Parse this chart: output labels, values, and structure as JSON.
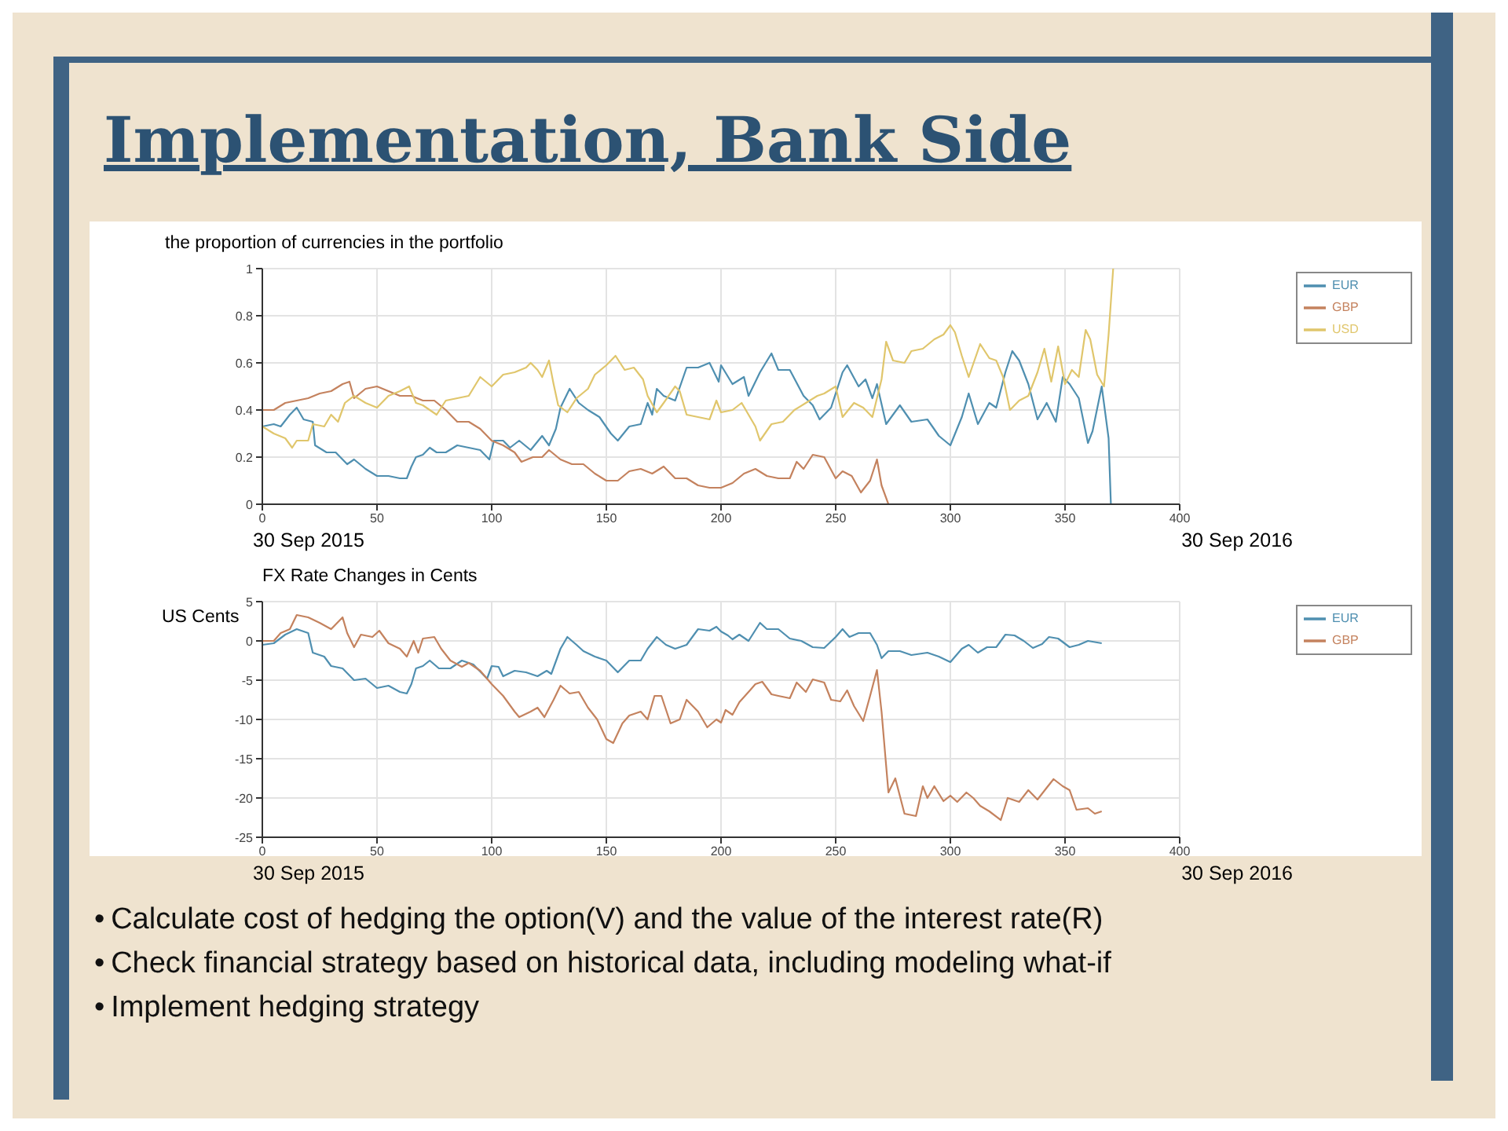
{
  "chart_data": [
    {
      "type": "line",
      "title": "the proportion of currencies in the portfolio",
      "xlim": [
        0,
        400
      ],
      "xticks": [
        0,
        50,
        100,
        150,
        200,
        250,
        300,
        350,
        400
      ],
      "ylim": [
        0,
        1
      ],
      "yticks": [
        0,
        0.2,
        0.4,
        0.6,
        0.8,
        1
      ],
      "grid": true,
      "legend": "top right",
      "annotations": [
        "Implementation, Bank Side",
        "30 Sep 2015",
        "30 Sep 2016"
      ],
      "series": [
        {
          "name": "EUR",
          "color": "#4f8fb0",
          "x": [
            0,
            5,
            8,
            12,
            15,
            18,
            22,
            23,
            28,
            32,
            37,
            40,
            45,
            50,
            55,
            60,
            63,
            65,
            67,
            70,
            73,
            76,
            80,
            85,
            90,
            95,
            99,
            101,
            105,
            108,
            112,
            117,
            122,
            125,
            128,
            130,
            134,
            138,
            142,
            147,
            152,
            155,
            160,
            165,
            168,
            170,
            172,
            175,
            180,
            185,
            190,
            195,
            199,
            200,
            205,
            210,
            212,
            217,
            222,
            225,
            230,
            236,
            240,
            243,
            248,
            253,
            255,
            260,
            263,
            266,
            268,
            272,
            278,
            283,
            290,
            295,
            300,
            305,
            308,
            312,
            317,
            320,
            324,
            327,
            330,
            334,
            338,
            342,
            346,
            349,
            352,
            356,
            360,
            362,
            366,
            369,
            370
          ],
          "values": [
            0.33,
            0.34,
            0.33,
            0.38,
            0.41,
            0.36,
            0.35,
            0.25,
            0.22,
            0.22,
            0.17,
            0.19,
            0.15,
            0.12,
            0.12,
            0.11,
            0.11,
            0.16,
            0.2,
            0.21,
            0.24,
            0.22,
            0.22,
            0.25,
            0.24,
            0.23,
            0.19,
            0.27,
            0.27,
            0.24,
            0.27,
            0.23,
            0.29,
            0.25,
            0.32,
            0.41,
            0.49,
            0.43,
            0.4,
            0.37,
            0.3,
            0.27,
            0.33,
            0.34,
            0.43,
            0.38,
            0.49,
            0.46,
            0.44,
            0.58,
            0.58,
            0.6,
            0.52,
            0.59,
            0.51,
            0.54,
            0.46,
            0.56,
            0.64,
            0.57,
            0.57,
            0.46,
            0.42,
            0.36,
            0.41,
            0.56,
            0.59,
            0.5,
            0.53,
            0.45,
            0.51,
            0.34,
            0.42,
            0.35,
            0.36,
            0.29,
            0.25,
            0.37,
            0.47,
            0.34,
            0.43,
            0.41,
            0.56,
            0.65,
            0.61,
            0.51,
            0.36,
            0.43,
            0.35,
            0.54,
            0.51,
            0.45,
            0.26,
            0.31,
            0.5,
            0.28,
            0
          ]
        },
        {
          "name": "GBP",
          "color": "#c4825e",
          "x": [
            0,
            5,
            10,
            15,
            20,
            25,
            30,
            35,
            38,
            40,
            45,
            50,
            55,
            60,
            65,
            70,
            75,
            80,
            85,
            90,
            95,
            100,
            105,
            110,
            113,
            118,
            122,
            125,
            130,
            135,
            140,
            145,
            150,
            155,
            160,
            165,
            170,
            175,
            180,
            185,
            190,
            195,
            200,
            205,
            210,
            215,
            220,
            225,
            230,
            233,
            236,
            240,
            245,
            250,
            253,
            257,
            261,
            265,
            268,
            270,
            273,
            367
          ],
          "values": [
            0.4,
            0.4,
            0.43,
            0.44,
            0.45,
            0.47,
            0.48,
            0.51,
            0.52,
            0.45,
            0.49,
            0.5,
            0.48,
            0.46,
            0.46,
            0.44,
            0.44,
            0.4,
            0.35,
            0.35,
            0.32,
            0.27,
            0.25,
            0.22,
            0.18,
            0.2,
            0.2,
            0.23,
            0.19,
            0.17,
            0.17,
            0.13,
            0.1,
            0.1,
            0.14,
            0.15,
            0.13,
            0.16,
            0.11,
            0.11,
            0.08,
            0.07,
            0.07,
            0.09,
            0.13,
            0.15,
            0.12,
            0.11,
            0.11,
            0.18,
            0.15,
            0.21,
            0.2,
            0.11,
            0.14,
            0.12,
            0.05,
            0.1,
            0.19,
            0.08,
            0,
            0
          ]
        },
        {
          "name": "USD",
          "color": "#e0c66c",
          "x": [
            0,
            5,
            10,
            13,
            15,
            20,
            22,
            27,
            30,
            33,
            36,
            40,
            45,
            50,
            55,
            60,
            64,
            67,
            70,
            73,
            76,
            80,
            85,
            90,
            95,
            100,
            105,
            110,
            115,
            117,
            120,
            122,
            125,
            127,
            129,
            133,
            137,
            142,
            145,
            150,
            154,
            158,
            162,
            166,
            168,
            172,
            175,
            180,
            182,
            185,
            190,
            195,
            198,
            200,
            205,
            209,
            215,
            217,
            222,
            227,
            232,
            237,
            242,
            245,
            250,
            253,
            258,
            262,
            266,
            270,
            272,
            275,
            280,
            283,
            288,
            293,
            297,
            300,
            302,
            305,
            308,
            313,
            317,
            320,
            323,
            326,
            330,
            334,
            338,
            341,
            344,
            347,
            350,
            353,
            356,
            359,
            361,
            364,
            367,
            369,
            371
          ],
          "values": [
            0.33,
            0.3,
            0.28,
            0.24,
            0.27,
            0.27,
            0.34,
            0.33,
            0.38,
            0.35,
            0.43,
            0.46,
            0.43,
            0.41,
            0.46,
            0.48,
            0.5,
            0.43,
            0.42,
            0.4,
            0.38,
            0.44,
            0.45,
            0.46,
            0.54,
            0.5,
            0.55,
            0.56,
            0.58,
            0.6,
            0.57,
            0.54,
            0.61,
            0.51,
            0.42,
            0.39,
            0.45,
            0.49,
            0.55,
            0.59,
            0.63,
            0.57,
            0.58,
            0.53,
            0.46,
            0.39,
            0.43,
            0.5,
            0.48,
            0.38,
            0.37,
            0.36,
            0.44,
            0.39,
            0.4,
            0.43,
            0.33,
            0.27,
            0.34,
            0.35,
            0.4,
            0.43,
            0.46,
            0.47,
            0.5,
            0.37,
            0.43,
            0.41,
            0.37,
            0.53,
            0.69,
            0.61,
            0.6,
            0.65,
            0.66,
            0.7,
            0.72,
            0.76,
            0.73,
            0.63,
            0.54,
            0.68,
            0.62,
            0.61,
            0.54,
            0.4,
            0.44,
            0.46,
            0.56,
            0.66,
            0.52,
            0.67,
            0.51,
            0.57,
            0.54,
            0.74,
            0.7,
            0.55,
            0.5,
            0.72,
            1
          ]
        }
      ]
    },
    {
      "type": "line",
      "title": "FX Rate Changes in Cents",
      "ylabel": "US Cents",
      "xlim": [
        0,
        400
      ],
      "xticks": [
        0,
        50,
        100,
        150,
        200,
        250,
        300,
        350,
        400
      ],
      "ylim": [
        -25,
        5
      ],
      "yticks": [
        -25,
        -20,
        -15,
        -10,
        -5,
        0,
        5
      ],
      "grid": true,
      "legend": "top right",
      "annotations": [
        "30 Sep 2015",
        "30 Sep 2016",
        "•\tCalculate cost of hedging the option(V) and the value of the interest rate(R)",
        "•\tCheck financial strategy based on historical data, including modeling what-if",
        "•\tImplement hedging strategy"
      ],
      "series": [
        {
          "name": "EUR",
          "color": "#4f8fb0",
          "x": [
            0,
            5,
            10,
            15,
            20,
            22,
            27,
            30,
            35,
            40,
            45,
            50,
            55,
            60,
            63,
            65,
            67,
            70,
            73,
            77,
            82,
            87,
            92,
            98,
            100,
            103,
            105,
            110,
            115,
            120,
            124,
            126,
            130,
            133,
            137,
            140,
            145,
            150,
            155,
            160,
            165,
            168,
            172,
            176,
            180,
            185,
            190,
            195,
            198,
            200,
            203,
            205,
            208,
            212,
            217,
            220,
            225,
            230,
            235,
            240,
            245,
            250,
            253,
            256,
            260,
            265,
            268,
            270,
            273,
            278,
            283,
            290,
            295,
            300,
            305,
            308,
            312,
            316,
            320,
            324,
            328,
            332,
            336,
            340,
            343,
            347,
            352,
            356,
            360,
            366
          ],
          "values": [
            -0.5,
            -0.3,
            0.8,
            1.5,
            1,
            -1.5,
            -2,
            -3.2,
            -3.5,
            -5,
            -4.8,
            -6,
            -5.7,
            -6.5,
            -6.7,
            -5.5,
            -3.5,
            -3.2,
            -2.5,
            -3.5,
            -3.5,
            -2.5,
            -3,
            -4.8,
            -3.2,
            -3.3,
            -4.5,
            -3.8,
            -4,
            -4.5,
            -3.8,
            -4.2,
            -1,
            0.5,
            -0.5,
            -1.3,
            -2,
            -2.5,
            -4,
            -2.5,
            -2.5,
            -1,
            0.5,
            -0.5,
            -1,
            -0.5,
            1.5,
            1.3,
            1.8,
            1.2,
            0.7,
            0.2,
            0.8,
            0,
            2.3,
            1.5,
            1.5,
            0.3,
            0,
            -0.8,
            -0.9,
            0.5,
            1.5,
            0.5,
            1,
            1,
            -0.5,
            -2.2,
            -1.3,
            -1.3,
            -1.8,
            -1.5,
            -2,
            -2.7,
            -1,
            -0.5,
            -1.5,
            -0.8,
            -0.8,
            0.8,
            0.7,
            0,
            -0.9,
            -0.4,
            0.5,
            0.3,
            -0.8,
            -0.5,
            0,
            -0.3
          ]
        },
        {
          "name": "GBP",
          "color": "#c4825e",
          "x": [
            0,
            5,
            8,
            12,
            15,
            20,
            25,
            30,
            35,
            37,
            40,
            43,
            48,
            51,
            55,
            60,
            63,
            66,
            68,
            70,
            75,
            78,
            82,
            87,
            90,
            95,
            100,
            105,
            110,
            112,
            117,
            120,
            123,
            127,
            130,
            134,
            138,
            142,
            146,
            150,
            153,
            157,
            160,
            165,
            168,
            171,
            174,
            178,
            182,
            185,
            190,
            194,
            198,
            200,
            202,
            205,
            208,
            212,
            215,
            218,
            222,
            225,
            230,
            233,
            237,
            240,
            245,
            248,
            252,
            255,
            258,
            262,
            265,
            268,
            270,
            273,
            276,
            280,
            285,
            288,
            290,
            293,
            297,
            300,
            303,
            307,
            310,
            313,
            317,
            322,
            325,
            330,
            334,
            338,
            342,
            345,
            349,
            352,
            355,
            360,
            363,
            366
          ],
          "values": [
            0,
            0,
            1,
            1.5,
            3.3,
            3,
            2.3,
            1.5,
            3,
            1,
            -0.8,
            0.8,
            0.5,
            1.3,
            -0.3,
            -1,
            -2,
            0,
            -1.5,
            0.3,
            0.5,
            -1,
            -2.5,
            -3.3,
            -2.8,
            -3.8,
            -5.5,
            -7,
            -9,
            -9.7,
            -9,
            -8.5,
            -9.7,
            -7.5,
            -5.7,
            -6.7,
            -6.5,
            -8.5,
            -10,
            -12.5,
            -13,
            -10.5,
            -9.5,
            -9,
            -10,
            -7,
            -7,
            -10.5,
            -10,
            -7.5,
            -9,
            -11,
            -10,
            -10.4,
            -8.8,
            -9.4,
            -7.8,
            -6.5,
            -5.5,
            -5.2,
            -6.8,
            -7,
            -7.3,
            -5.3,
            -6.5,
            -4.9,
            -5.3,
            -7.5,
            -7.7,
            -6.3,
            -8.3,
            -10.2,
            -7,
            -3.7,
            -9,
            -19.3,
            -17.5,
            -22,
            -22.3,
            -18.5,
            -20,
            -18.5,
            -20.4,
            -19.7,
            -20.5,
            -19.3,
            -20,
            -21,
            -21.7,
            -22.8,
            -20,
            -20.5,
            -19,
            -20.2,
            -18.7,
            -17.6,
            -18.5,
            -19,
            -21.5,
            -21.3,
            -22,
            -21.7
          ]
        }
      ]
    }
  ]
}
